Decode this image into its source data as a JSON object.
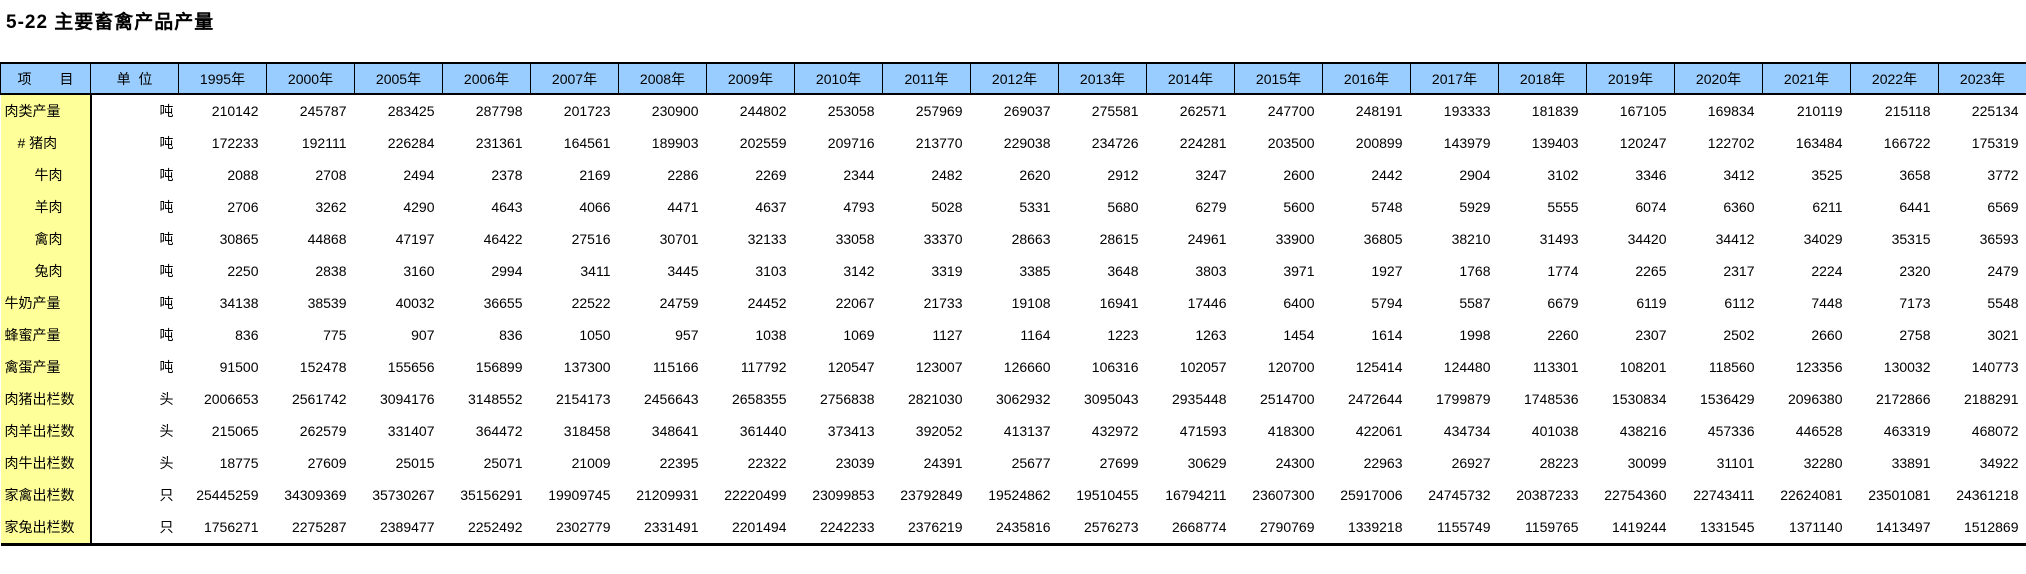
{
  "title": "5-22 主要畜禽产品产量",
  "colors": {
    "header_bg": "#99CCFF",
    "label_bg": "#FFFF99",
    "border": "#000000",
    "page_bg": "#FFFFFF",
    "text": "#000000"
  },
  "table": {
    "item_header": "项　　目",
    "unit_header": "单  位",
    "year_headers": [
      "1995年",
      "2000年",
      "2005年",
      "2006年",
      "2007年",
      "2008年",
      "2009年",
      "2010年",
      "2011年",
      "2012年",
      "2013年",
      "2014年",
      "2015年",
      "2016年",
      "2017年",
      "2018年",
      "2019年",
      "2020年",
      "2021年",
      "2022年",
      "2023年"
    ],
    "rows": [
      {
        "label": "肉类产量",
        "indent": 0,
        "unit": "吨",
        "values": [
          210142,
          245787,
          283425,
          287798,
          201723,
          230900,
          244802,
          253058,
          257969,
          269037,
          275581,
          262571,
          247700,
          248191,
          193333,
          181839,
          167105,
          169834,
          210119,
          215118,
          225134
        ]
      },
      {
        "label": "# 猪肉",
        "indent": 1,
        "unit": "吨",
        "values": [
          172233,
          192111,
          226284,
          231361,
          164561,
          189903,
          202559,
          209716,
          213770,
          229038,
          234726,
          224281,
          203500,
          200899,
          143979,
          139403,
          120247,
          122702,
          163484,
          166722,
          175319
        ]
      },
      {
        "label": "牛肉",
        "indent": 2,
        "unit": "吨",
        "values": [
          2088,
          2708,
          2494,
          2378,
          2169,
          2286,
          2269,
          2344,
          2482,
          2620,
          2912,
          3247,
          2600,
          2442,
          2904,
          3102,
          3346,
          3412,
          3525,
          3658,
          3772
        ]
      },
      {
        "label": "羊肉",
        "indent": 2,
        "unit": "吨",
        "values": [
          2706,
          3262,
          4290,
          4643,
          4066,
          4471,
          4637,
          4793,
          5028,
          5331,
          5680,
          6279,
          5600,
          5748,
          5929,
          5555,
          6074,
          6360,
          6211,
          6441,
          6569
        ]
      },
      {
        "label": "禽肉",
        "indent": 2,
        "unit": "吨",
        "values": [
          30865,
          44868,
          47197,
          46422,
          27516,
          30701,
          32133,
          33058,
          33370,
          28663,
          28615,
          24961,
          33900,
          36805,
          38210,
          31493,
          34420,
          34412,
          34029,
          35315,
          36593
        ]
      },
      {
        "label": "兔肉",
        "indent": 2,
        "unit": "吨",
        "values": [
          2250,
          2838,
          3160,
          2994,
          3411,
          3445,
          3103,
          3142,
          3319,
          3385,
          3648,
          3803,
          3971,
          1927,
          1768,
          1774,
          2265,
          2317,
          2224,
          2320,
          2479
        ]
      },
      {
        "label": "牛奶产量",
        "indent": 0,
        "unit": "吨",
        "values": [
          34138,
          38539,
          40032,
          36655,
          22522,
          24759,
          24452,
          22067,
          21733,
          19108,
          16941,
          17446,
          6400,
          5794,
          5587,
          6679,
          6119,
          6112,
          7448,
          7173,
          5548
        ]
      },
      {
        "label": "蜂蜜产量",
        "indent": 0,
        "unit": "吨",
        "values": [
          836,
          775,
          907,
          836,
          1050,
          957,
          1038,
          1069,
          1127,
          1164,
          1223,
          1263,
          1454,
          1614,
          1998,
          2260,
          2307,
          2502,
          2660,
          2758,
          3021
        ]
      },
      {
        "label": "禽蛋产量",
        "indent": 0,
        "unit": "吨",
        "values": [
          91500,
          152478,
          155656,
          156899,
          137300,
          115166,
          117792,
          120547,
          123007,
          126660,
          106316,
          102057,
          120700,
          125414,
          124480,
          113301,
          108201,
          118560,
          123356,
          130032,
          140773
        ]
      },
      {
        "label": "肉猪出栏数",
        "indent": 0,
        "unit": "头",
        "values": [
          2006653,
          2561742,
          3094176,
          3148552,
          2154173,
          2456643,
          2658355,
          2756838,
          2821030,
          3062932,
          3095043,
          2935448,
          2514700,
          2472644,
          1799879,
          1748536,
          1530834,
          1536429,
          2096380,
          2172866,
          2188291
        ]
      },
      {
        "label": "肉羊出栏数",
        "indent": 0,
        "unit": "头",
        "values": [
          215065,
          262579,
          331407,
          364472,
          318458,
          348641,
          361440,
          373413,
          392052,
          413137,
          432972,
          471593,
          418300,
          422061,
          434734,
          401038,
          438216,
          457336,
          446528,
          463319,
          468072
        ]
      },
      {
        "label": "肉牛出栏数",
        "indent": 0,
        "unit": "头",
        "values": [
          18775,
          27609,
          25015,
          25071,
          21009,
          22395,
          22322,
          23039,
          24391,
          25677,
          27699,
          30629,
          24300,
          22963,
          26927,
          28223,
          30099,
          31101,
          32280,
          33891,
          34922
        ]
      },
      {
        "label": "家禽出栏数",
        "indent": 0,
        "unit": "只",
        "values": [
          25445259,
          34309369,
          35730267,
          35156291,
          19909745,
          21209931,
          22220499,
          23099853,
          23792849,
          19524862,
          19510455,
          16794211,
          23607300,
          25917006,
          24745732,
          20387233,
          22754360,
          22743411,
          22624081,
          23501081,
          24361218
        ]
      },
      {
        "label": "家兔出栏数",
        "indent": 0,
        "unit": "只",
        "values": [
          1756271,
          2275287,
          2389477,
          2252492,
          2302779,
          2331491,
          2201494,
          2242233,
          2376219,
          2435816,
          2576273,
          2668774,
          2790769,
          1339218,
          1155749,
          1159765,
          1419244,
          1331545,
          1371140,
          1413497,
          1512869
        ]
      }
    ]
  }
}
